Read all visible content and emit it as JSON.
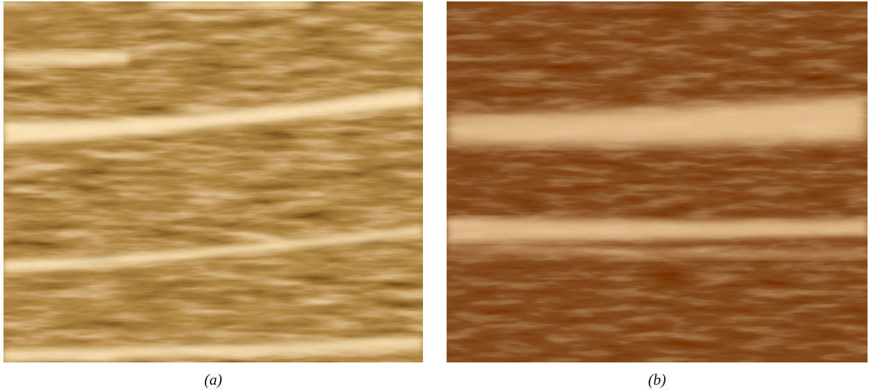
{
  "panels": [
    {
      "caption": "(a)"
    },
    {
      "caption": "(b)"
    }
  ]
}
